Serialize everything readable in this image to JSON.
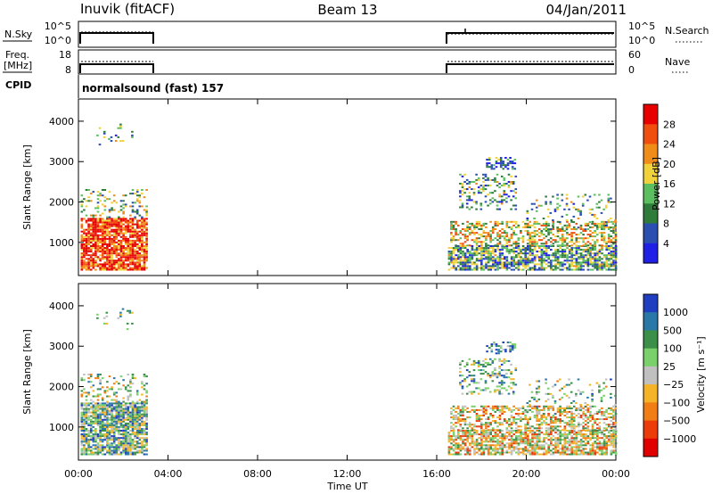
{
  "header": {
    "station": "Inuvik (fitACF)",
    "beam": "Beam 13",
    "date": "04/Jan/2011"
  },
  "strips": {
    "nsky_label": "N.Sky",
    "nsky_ticks": [
      "10^5",
      "10^0"
    ],
    "nsearch_label": "N.Search",
    "nsearch_ticks": [
      "10^5",
      "10^0"
    ],
    "freq_label_top": "Freq.",
    "freq_label_bottom": "[MHz]",
    "freq_ticks": [
      "18",
      "8"
    ],
    "nave_label": "Nave",
    "nave_ticks": [
      "60",
      "0"
    ],
    "cpid_label": "CPID",
    "cpid_text": "normalsound (fast) 157"
  },
  "chart_data": [
    {
      "type": "heatmap",
      "panel": "power",
      "ylabel": "Slant Range [km]",
      "xlabel": "",
      "x_ticks": [
        "00:00",
        "04:00",
        "08:00",
        "12:00",
        "16:00",
        "20:00",
        "00:00"
      ],
      "x_range_hours": [
        0,
        24
      ],
      "y_ticks": [
        1000,
        2000,
        3000,
        4000
      ],
      "ylim": [
        180,
        4550
      ],
      "data_gap_hours": [
        3.1,
        16.5
      ],
      "colorbar": {
        "label": "Power [dB]",
        "ticks": [
          "4",
          "8",
          "12",
          "16",
          "20",
          "24",
          "28"
        ],
        "range": [
          0,
          30
        ],
        "colors": [
          "#1f1fe6",
          "#2a4fb0",
          "#2f7c3a",
          "#5bbf5f",
          "#f1d23a",
          "#f08c18",
          "#f04e0f",
          "#e80000"
        ]
      }
    },
    {
      "type": "heatmap",
      "panel": "velocity",
      "ylabel": "Slant Range [km]",
      "xlabel": "Time UT",
      "x_ticks": [
        "00:00",
        "04:00",
        "08:00",
        "12:00",
        "16:00",
        "20:00",
        "00:00"
      ],
      "x_range_hours": [
        0,
        24
      ],
      "y_ticks": [
        1000,
        2000,
        3000,
        4000
      ],
      "ylim": [
        180,
        4550
      ],
      "data_gap_hours": [
        3.1,
        16.5
      ],
      "colorbar": {
        "label": "Velocity [m s⁻¹]",
        "ticks": [
          "1000",
          "500",
          "100",
          "25",
          "−25",
          "−100",
          "−500",
          "−1000"
        ],
        "colors": [
          "#1f3fc0",
          "#2a78a8",
          "#3c8f48",
          "#7ad06b",
          "#c0c0c0",
          "#f5b428",
          "#f07e15",
          "#ec3c0a",
          "#e00000"
        ]
      }
    }
  ]
}
